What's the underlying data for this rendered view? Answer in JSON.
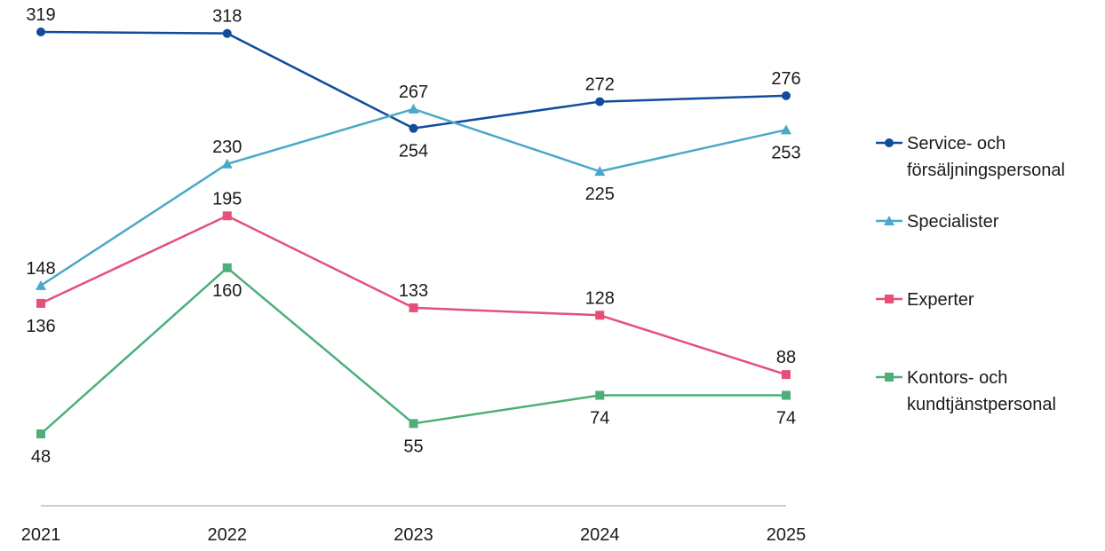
{
  "chart_data": {
    "type": "line",
    "categories": [
      "2021",
      "2022",
      "2023",
      "2024",
      "2025"
    ],
    "series": [
      {
        "name": "Service- och försäljningspersonal",
        "name_lines": [
          "Service- och",
          "försäljningspersonal"
        ],
        "values": [
          319,
          318,
          254,
          272,
          276
        ],
        "color": "#0f4c9c",
        "marker": "circle",
        "label_pos": [
          "above",
          "above",
          "below",
          "above",
          "above"
        ]
      },
      {
        "name": "Specialister",
        "name_lines": [
          "Specialister"
        ],
        "values": [
          148,
          230,
          267,
          225,
          253
        ],
        "color": "#4aa8c8",
        "marker": "triangle",
        "label_pos": [
          "above",
          "above",
          "above",
          "below",
          "below"
        ]
      },
      {
        "name": "Experter",
        "name_lines": [
          "Experter"
        ],
        "values": [
          136,
          195,
          133,
          128,
          88
        ],
        "color": "#e4507a",
        "marker": "square",
        "label_pos": [
          "below",
          "above",
          "above",
          "above",
          "above"
        ]
      },
      {
        "name": "Kontors- och kundtjänstpersonal",
        "name_lines": [
          "Kontors- och",
          "kundtjänstpersonal"
        ],
        "values": [
          48,
          160,
          55,
          74,
          74
        ],
        "color": "#4caf78",
        "marker": "square",
        "label_pos": [
          "below",
          "below",
          "below",
          "below",
          "below"
        ]
      }
    ],
    "title": "",
    "xlabel": "",
    "ylabel": "",
    "ylim": [
      0,
      319
    ],
    "grid": false,
    "legend": "right"
  }
}
